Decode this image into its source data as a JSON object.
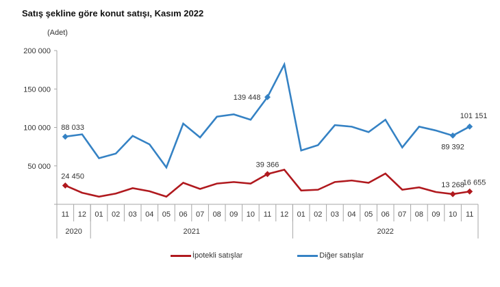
{
  "chart_data": {
    "type": "line",
    "title": "Satış şekline göre konut satışı, Kasım 2022",
    "ylabel": "(Adet)",
    "xlabel": "",
    "ylim": [
      0,
      200000
    ],
    "yticks": [
      0,
      50000,
      100000,
      150000,
      200000
    ],
    "ytick_labels": [
      "",
      "50 000",
      "100 000",
      "150 000",
      "200 000"
    ],
    "grid": false,
    "legend_position": "bottom",
    "categories": [
      "11",
      "12",
      "01",
      "02",
      "03",
      "04",
      "05",
      "06",
      "07",
      "08",
      "09",
      "10",
      "11",
      "12",
      "01",
      "02",
      "03",
      "04",
      "05",
      "06",
      "07",
      "08",
      "09",
      "10",
      "11"
    ],
    "years": [
      {
        "label": "2020",
        "span": 2
      },
      {
        "label": "2021",
        "span": 12
      },
      {
        "label": "2022",
        "span": 11
      }
    ],
    "series": [
      {
        "name": "İpotekli satışlar",
        "color": "#b0191e",
        "values": [
          24450,
          15000,
          10000,
          14000,
          21000,
          17000,
          10000,
          28000,
          20000,
          27000,
          29000,
          27000,
          39366,
          45000,
          18000,
          19000,
          29000,
          31000,
          28000,
          40000,
          19000,
          22000,
          16000,
          13268,
          16655
        ],
        "labels": [
          {
            "index": 0,
            "text": "24 450"
          },
          {
            "index": 12,
            "text": "39 366"
          },
          {
            "index": 23,
            "text": "13 268"
          },
          {
            "index": 24,
            "text": "16 655"
          }
        ]
      },
      {
        "name": "Diğer satışlar",
        "color": "#3582c4",
        "values": [
          88033,
          91000,
          60000,
          66000,
          89000,
          78000,
          48000,
          105000,
          87000,
          114000,
          117000,
          110000,
          139448,
          182000,
          70000,
          77000,
          103000,
          101000,
          94000,
          110000,
          74000,
          101000,
          96000,
          89392,
          101151
        ],
        "labels": [
          {
            "index": 0,
            "text": "88 033"
          },
          {
            "index": 12,
            "text": "139 448"
          },
          {
            "index": 23,
            "text": "89 392"
          },
          {
            "index": 24,
            "text": "101 151"
          }
        ]
      }
    ]
  },
  "legend": {
    "items": [
      {
        "label": "İpotekli satışlar",
        "color": "#b0191e"
      },
      {
        "label": "Diğer satışlar",
        "color": "#3582c4"
      }
    ]
  }
}
